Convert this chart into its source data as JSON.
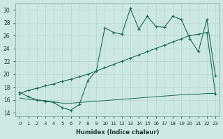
{
  "xlabel": "Humidex (Indice chaleur)",
  "xlim": [
    -0.5,
    23.5
  ],
  "ylim": [
    13.5,
    31
  ],
  "yticks": [
    14,
    16,
    18,
    20,
    22,
    24,
    26,
    28,
    30
  ],
  "xticks": [
    0,
    1,
    2,
    3,
    4,
    5,
    6,
    7,
    8,
    9,
    10,
    11,
    12,
    13,
    14,
    15,
    16,
    17,
    18,
    19,
    20,
    21,
    22,
    23
  ],
  "bg_color": "#cde8e4",
  "line_color": "#1a6b5a",
  "grid_color": "#b8d8d4",
  "line1_x": [
    0,
    1,
    2,
    3,
    4,
    5,
    6,
    7,
    8,
    9,
    10,
    11,
    12,
    13,
    14,
    15,
    16,
    17,
    18,
    19,
    20,
    21,
    22,
    23
  ],
  "line1_y": [
    17.2,
    16.5,
    16.0,
    15.8,
    15.6,
    14.8,
    14.4,
    15.3,
    19.0,
    20.5,
    27.2,
    26.5,
    26.2,
    30.2,
    27.0,
    29.0,
    27.4,
    27.3,
    29.0,
    28.5,
    25.5,
    23.5,
    28.5,
    19.8
  ],
  "line2_x": [
    0,
    1,
    2,
    3,
    4,
    5,
    6,
    7,
    8,
    9,
    10,
    11,
    12,
    13,
    14,
    15,
    16,
    17,
    18,
    19,
    20,
    21,
    22,
    23
  ],
  "line2_y": [
    16.3,
    16.1,
    16.0,
    15.9,
    15.7,
    15.5,
    15.5,
    15.6,
    15.7,
    15.8,
    15.9,
    16.0,
    16.1,
    16.2,
    16.3,
    16.4,
    16.5,
    16.6,
    16.7,
    16.8,
    16.9,
    16.9,
    17.0,
    17.0
  ],
  "line3_x": [
    0,
    1,
    2,
    3,
    4,
    5,
    6,
    7,
    8,
    9,
    10,
    11,
    12,
    13,
    14,
    15,
    16,
    17,
    18,
    19,
    20,
    21,
    22,
    23
  ],
  "line3_y": [
    17.0,
    17.5,
    17.8,
    18.2,
    18.5,
    18.9,
    19.2,
    19.6,
    20.0,
    20.5,
    21.0,
    21.5,
    22.0,
    22.5,
    23.0,
    23.5,
    24.0,
    24.5,
    25.0,
    25.5,
    26.0,
    26.2,
    26.5,
    17.0
  ]
}
